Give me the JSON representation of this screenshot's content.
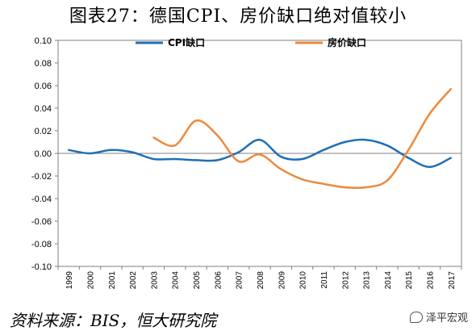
{
  "title": "图表27：德国CPI、房价缺口绝对值较小",
  "source": "资料来源：BIS，恒大研究院",
  "watermark": "泽平宏观",
  "colors": {
    "cpi": "#1f6fb5",
    "house": "#ec8a3c",
    "axis": "#808080"
  },
  "chart_data": {
    "type": "line",
    "title": "",
    "xlabel": "",
    "ylabel": "",
    "ylim": [
      -0.1,
      0.1
    ],
    "y_ticks": [
      "0.10",
      "0.08",
      "0.06",
      "0.04",
      "0.02",
      "0.00",
      "-0.02",
      "-0.04",
      "-0.06",
      "-0.08",
      "-0.10"
    ],
    "y_tick_values": [
      0.1,
      0.08,
      0.06,
      0.04,
      0.02,
      0.0,
      -0.02,
      -0.04,
      -0.06,
      -0.08,
      -0.1
    ],
    "categories": [
      "1999",
      "2000",
      "2001",
      "2002",
      "2003",
      "2004",
      "2005",
      "2006",
      "2007",
      "2008",
      "2009",
      "2010",
      "2011",
      "2012",
      "2013",
      "2014",
      "2015",
      "2016",
      "2017"
    ],
    "legend_position": "top",
    "series": [
      {
        "name": "CPI缺口",
        "color": "#1f6fb5",
        "values": [
          0.003,
          0.0,
          0.003,
          0.001,
          -0.005,
          -0.005,
          -0.006,
          -0.006,
          0.001,
          0.012,
          -0.003,
          -0.005,
          0.003,
          0.01,
          0.012,
          0.007,
          -0.004,
          -0.012,
          -0.004
        ]
      },
      {
        "name": "房价缺口",
        "color": "#ec8a3c",
        "values": [
          null,
          null,
          null,
          null,
          0.014,
          0.007,
          0.029,
          0.016,
          -0.007,
          -0.001,
          -0.014,
          -0.023,
          -0.027,
          -0.03,
          -0.03,
          -0.024,
          0.003,
          0.035,
          0.057
        ]
      }
    ]
  }
}
